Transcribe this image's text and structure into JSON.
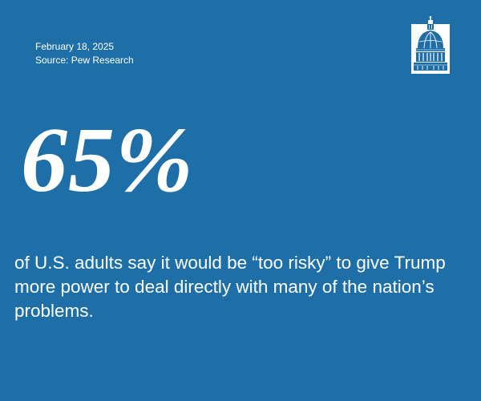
{
  "meta": {
    "date": "February 18, 2025",
    "source": "Source: Pew Research"
  },
  "logo": {
    "icon": "capitol-dome-icon"
  },
  "stat": {
    "value": "65%",
    "statement": "of U.S. adults say it would be “too risky” to give Trump more power to deal directly with many of the nation’s problems."
  },
  "colors": {
    "background": "#1e6fa8",
    "text": "#ffffff"
  }
}
